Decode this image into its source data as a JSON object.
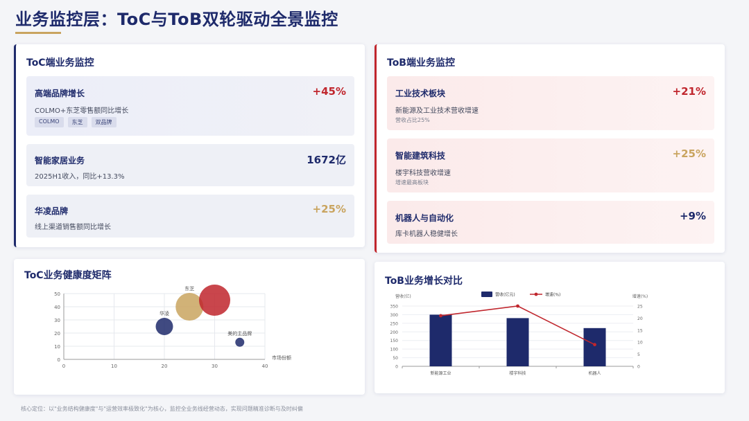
{
  "header": {
    "title": "业务监控层：ToC与ToB双轮驱动全景监控"
  },
  "toc": {
    "title": "ToC端业务监控",
    "cards": [
      {
        "name": "高端品牌增长",
        "value": "+45%",
        "desc": "COLMO+东芝零售额同比增长",
        "tags": [
          "COLMO",
          "东芝",
          "双品牌"
        ]
      },
      {
        "name": "智能家居业务",
        "value": "1672亿",
        "desc": "2025H1收入，同比+13.3%"
      },
      {
        "name": "华凌品牌",
        "value": "+25%",
        "desc": "线上渠道销售额同比增长"
      }
    ]
  },
  "tob": {
    "title": "ToB端业务监控",
    "cards": [
      {
        "name": "工业技术板块",
        "value": "+21%",
        "desc": "新能源及工业技术营收增速",
        "note": "营收占比25%"
      },
      {
        "name": "智能建筑科技",
        "value": "+25%",
        "desc": "楼宇科技营收增速",
        "note": "增速最高板块"
      },
      {
        "name": "机器人与自动化",
        "value": "+9%",
        "desc": "库卡机器人稳健增长"
      }
    ]
  },
  "colors": {
    "navy": "#1e2a6b",
    "red": "#c0262d",
    "gold": "#c9a45f"
  },
  "chart_data": [
    {
      "type": "scatter",
      "title": "ToC业务健康度矩阵",
      "xlabel": "市场份额",
      "ylabel": "",
      "xlim": [
        0,
        40
      ],
      "ylim": [
        0,
        50
      ],
      "xticks": [
        0,
        10,
        20,
        30,
        40
      ],
      "yticks": [
        0,
        10,
        20,
        30,
        40,
        50
      ],
      "grid": true,
      "points": [
        {
          "label": "华凌",
          "x": 20,
          "y": 25,
          "size": 25,
          "color": "#1e2a6b"
        },
        {
          "label": "东芝",
          "x": 25,
          "y": 40,
          "size": 40,
          "color": "#c9a45f"
        },
        {
          "label": "",
          "x": 30,
          "y": 45,
          "size": 45,
          "color": "#c0262d"
        },
        {
          "label": "美的主品牌",
          "x": 35,
          "y": 13,
          "size": 13,
          "color": "#1e2a6b"
        }
      ]
    },
    {
      "type": "bar",
      "title": "ToB业务增长对比",
      "categories": [
        "新能源工业",
        "楼宇科技",
        "机器人"
      ],
      "ylabel_left": "营收(亿)",
      "ylabel_right": "增速(%)",
      "ylim_left": [
        0,
        350
      ],
      "yticks_left": [
        0,
        50,
        100,
        150,
        200,
        250,
        300,
        350
      ],
      "ylim_right": [
        0,
        25
      ],
      "yticks_right": [
        0,
        5,
        10,
        15,
        20,
        25
      ],
      "legend_placement": "top-center",
      "series": [
        {
          "name": "营收(亿元)",
          "type": "bar",
          "axis": "left",
          "values": [
            300,
            280,
            222
          ],
          "color": "#1e2a6b"
        },
        {
          "name": "增速(%)",
          "type": "line",
          "axis": "right",
          "values": [
            21,
            25,
            9
          ],
          "color": "#c0262d"
        }
      ]
    }
  ],
  "footer": {
    "text": "核心定位：以\"业务结构健康度\"与\"运营效率极致化\"为核心，监控全业务线经营动态，实现问题精准诊断与及时纠偏"
  }
}
